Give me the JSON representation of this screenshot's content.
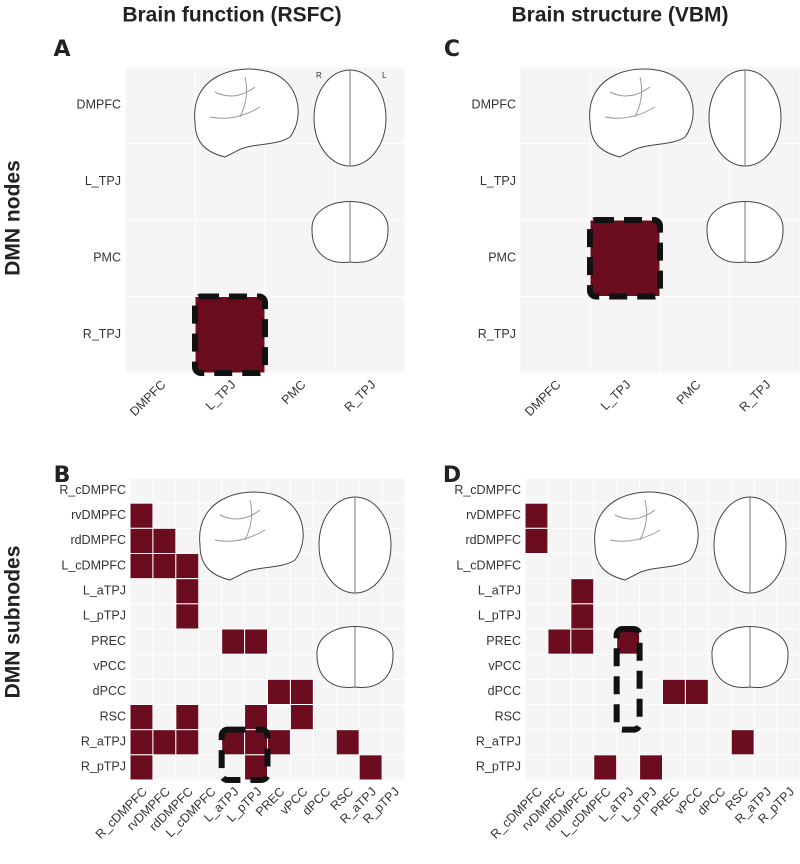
{
  "column_titles": [
    "Brain function (RSFC)",
    "Brain structure (VBM)"
  ],
  "row_titles": [
    "DMN nodes",
    "DMN subnodes"
  ],
  "panels": [
    {
      "letter": "A",
      "labels": [
        "DMPFC",
        "L_TPJ",
        "PMC",
        "R_TPJ"
      ],
      "brain_marks": [
        "R",
        "L"
      ],
      "matrix": [
        [
          0,
          0,
          0,
          0
        ],
        [
          0,
          0,
          0,
          0
        ],
        [
          0,
          0,
          0,
          0
        ],
        [
          0,
          1,
          0,
          0
        ]
      ]
    },
    {
      "letter": "C",
      "labels": [
        "DMPFC",
        "L_TPJ",
        "PMC",
        "R_TPJ"
      ],
      "matrix": [
        [
          0,
          0,
          0,
          0
        ],
        [
          0,
          0,
          0,
          0
        ],
        [
          0,
          1,
          0,
          0
        ],
        [
          0,
          0,
          0,
          0
        ]
      ]
    },
    {
      "letter": "B",
      "labels": [
        "R_cDMPFC",
        "rvDMPFC",
        "rdDMPFC",
        "L_cDMPFC",
        "L_aTPJ",
        "L_pTPJ",
        "PREC",
        "vPCC",
        "dPCC",
        "RSC",
        "R_aTPJ",
        "R_pTPJ"
      ],
      "matrix": [
        [
          0,
          0,
          0,
          0,
          0,
          0,
          0,
          0,
          0,
          0,
          0,
          0
        ],
        [
          1,
          0,
          0,
          0,
          0,
          0,
          0,
          0,
          0,
          0,
          0,
          0
        ],
        [
          1,
          1,
          0,
          0,
          0,
          0,
          0,
          0,
          0,
          0,
          0,
          0
        ],
        [
          1,
          1,
          1,
          0,
          0,
          0,
          0,
          0,
          0,
          0,
          0,
          0
        ],
        [
          0,
          0,
          1,
          0,
          0,
          0,
          0,
          0,
          0,
          0,
          0,
          0
        ],
        [
          0,
          0,
          1,
          0,
          0,
          0,
          0,
          0,
          0,
          0,
          0,
          0
        ],
        [
          0,
          0,
          0,
          0,
          1,
          1,
          0,
          0,
          0,
          0,
          0,
          0
        ],
        [
          0,
          0,
          0,
          0,
          0,
          0,
          0,
          0,
          0,
          0,
          0,
          0
        ],
        [
          0,
          0,
          0,
          0,
          0,
          0,
          1,
          1,
          0,
          0,
          0,
          0
        ],
        [
          1,
          0,
          1,
          0,
          0,
          1,
          0,
          1,
          0,
          0,
          0,
          0
        ],
        [
          1,
          1,
          1,
          0,
          1,
          1,
          1,
          0,
          0,
          1,
          0,
          0
        ],
        [
          1,
          0,
          0,
          0,
          0,
          1,
          0,
          0,
          0,
          0,
          1,
          0
        ]
      ]
    },
    {
      "letter": "D",
      "labels": [
        "R_cDMPFC",
        "rvDMPFC",
        "rdDMPFC",
        "L_cDMPFC",
        "L_aTPJ",
        "L_pTPJ",
        "PREC",
        "vPCC",
        "dPCC",
        "RSC",
        "R_aTPJ",
        "R_pTPJ"
      ],
      "matrix": [
        [
          0,
          0,
          0,
          0,
          0,
          0,
          0,
          0,
          0,
          0,
          0,
          0
        ],
        [
          1,
          0,
          0,
          0,
          0,
          0,
          0,
          0,
          0,
          0,
          0,
          0
        ],
        [
          1,
          0,
          0,
          0,
          0,
          0,
          0,
          0,
          0,
          0,
          0,
          0
        ],
        [
          0,
          0,
          0,
          0,
          0,
          0,
          0,
          0,
          0,
          0,
          0,
          0
        ],
        [
          0,
          0,
          1,
          0,
          0,
          0,
          0,
          0,
          0,
          0,
          0,
          0
        ],
        [
          0,
          0,
          1,
          0,
          0,
          0,
          0,
          0,
          0,
          0,
          0,
          0
        ],
        [
          0,
          1,
          1,
          0,
          1,
          0,
          0,
          0,
          0,
          0,
          0,
          0
        ],
        [
          0,
          0,
          0,
          0,
          0,
          0,
          0,
          0,
          0,
          0,
          0,
          0
        ],
        [
          0,
          0,
          0,
          0,
          0,
          0,
          1,
          1,
          0,
          0,
          0,
          0
        ],
        [
          0,
          0,
          0,
          0,
          0,
          0,
          0,
          0,
          0,
          0,
          0,
          0
        ],
        [
          0,
          0,
          0,
          0,
          0,
          0,
          0,
          0,
          0,
          1,
          0,
          0
        ],
        [
          0,
          0,
          0,
          1,
          0,
          1,
          0,
          0,
          0,
          0,
          0,
          0
        ]
      ]
    }
  ]
}
